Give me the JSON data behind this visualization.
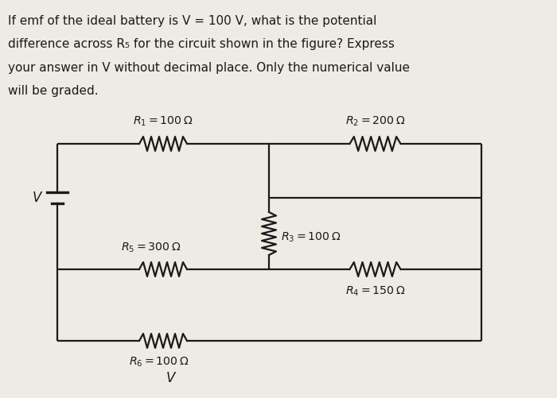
{
  "title_lines": [
    "If emf of the ideal battery is V = 100 V, what is the potential",
    "difference across R₅ for the circuit shown in the figure? Express",
    "your answer in V without decimal place. Only the numerical value",
    "will be graded."
  ],
  "bg_color": "#eeeae4",
  "text_color": "#1a1a1a",
  "lw_wire": 1.6,
  "lw_res": 1.6,
  "nodes": {
    "xl": 0.72,
    "xm": 3.38,
    "xr": 6.05,
    "yt": 3.2,
    "yum": 2.52,
    "ylm": 1.62,
    "yb": 0.72
  },
  "labels": {
    "R1": "R_1 = 100\\,\\Omega",
    "R2": "R_2 = 200\\,\\Omega",
    "R3": "R_3 = 100\\,\\Omega",
    "R4": "R_4 = 150\\,\\Omega",
    "R5": "R_5 = 300\\,\\Omega",
    "R6": "R_6 = 100\\,\\Omega"
  }
}
